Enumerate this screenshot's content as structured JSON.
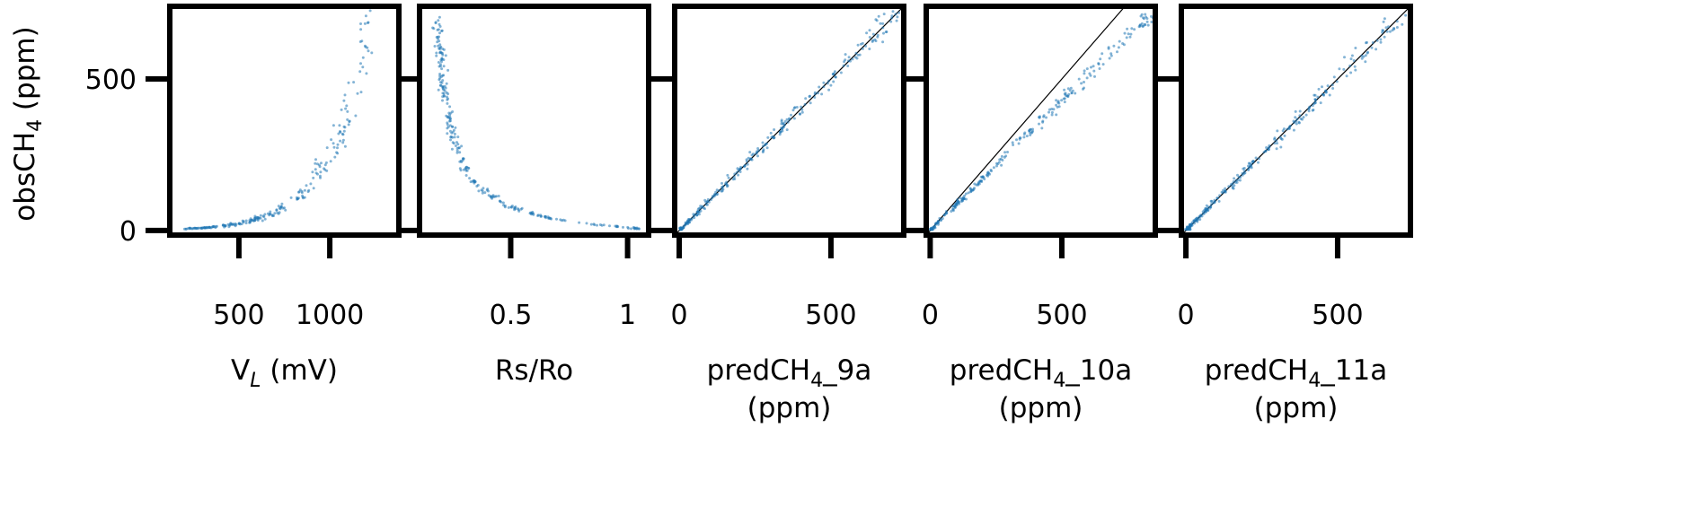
{
  "chart_data": {
    "type": "scatter",
    "shared_y": {
      "label_main": "obsCH",
      "label_sub": "4",
      "label_tail": " (ppm)",
      "ylim": [
        -15,
        740
      ],
      "ticks": [
        0,
        500
      ]
    },
    "panels": [
      {
        "id": "vl",
        "xlabel": {
          "main": "V",
          "sub": "L",
          "sub_italic": true,
          "tail": " (mV)",
          "line2": ""
        },
        "xlim": [
          120,
          1380
        ],
        "xticks": [
          500,
          1000
        ],
        "identity_line": false,
        "relation": "exponential",
        "x_range": [
          200,
          1350
        ],
        "y_range": [
          3,
          720
        ]
      },
      {
        "id": "rsro",
        "xlabel": {
          "main": "Rs/Ro",
          "sub": "",
          "sub_italic": false,
          "tail": "",
          "line2": ""
        },
        "xlim": [
          0.11,
          1.09
        ],
        "xticks": [
          0.5,
          1.0
        ],
        "identity_line": false,
        "relation": "decay",
        "x_range": [
          0.15,
          1.05
        ],
        "y_range": [
          3,
          720
        ]
      },
      {
        "id": "p9a",
        "xlabel": {
          "main": "predCH",
          "sub": "4",
          "sub_italic": false,
          "tail": "_9a",
          "line2": "(ppm)"
        },
        "xlim": [
          -15,
          740
        ],
        "xticks": [
          0,
          500
        ],
        "identity_line": true,
        "relation": "identity",
        "slope": 1.0,
        "x_range": [
          0,
          730
        ]
      },
      {
        "id": "p10a",
        "xlabel": {
          "main": "predCH",
          "sub": "4",
          "sub_italic": false,
          "tail": "_10a",
          "line2": "(ppm)"
        },
        "xlim": [
          -15,
          855
        ],
        "xticks": [
          0,
          500
        ],
        "identity_line": true,
        "relation": "linear",
        "slope": 0.86,
        "x_range": [
          0,
          840
        ]
      },
      {
        "id": "p11a",
        "xlabel": {
          "main": "predCH",
          "sub": "4",
          "sub_italic": false,
          "tail": "_11a",
          "line2": "(ppm)"
        },
        "xlim": [
          -15,
          740
        ],
        "xticks": [
          0,
          500
        ],
        "identity_line": true,
        "relation": "identity",
        "slope": 1.0,
        "x_range": [
          0,
          730
        ]
      }
    ],
    "point_count": 260,
    "point_color": "#1f77b4",
    "grid": false,
    "legend": "none"
  }
}
